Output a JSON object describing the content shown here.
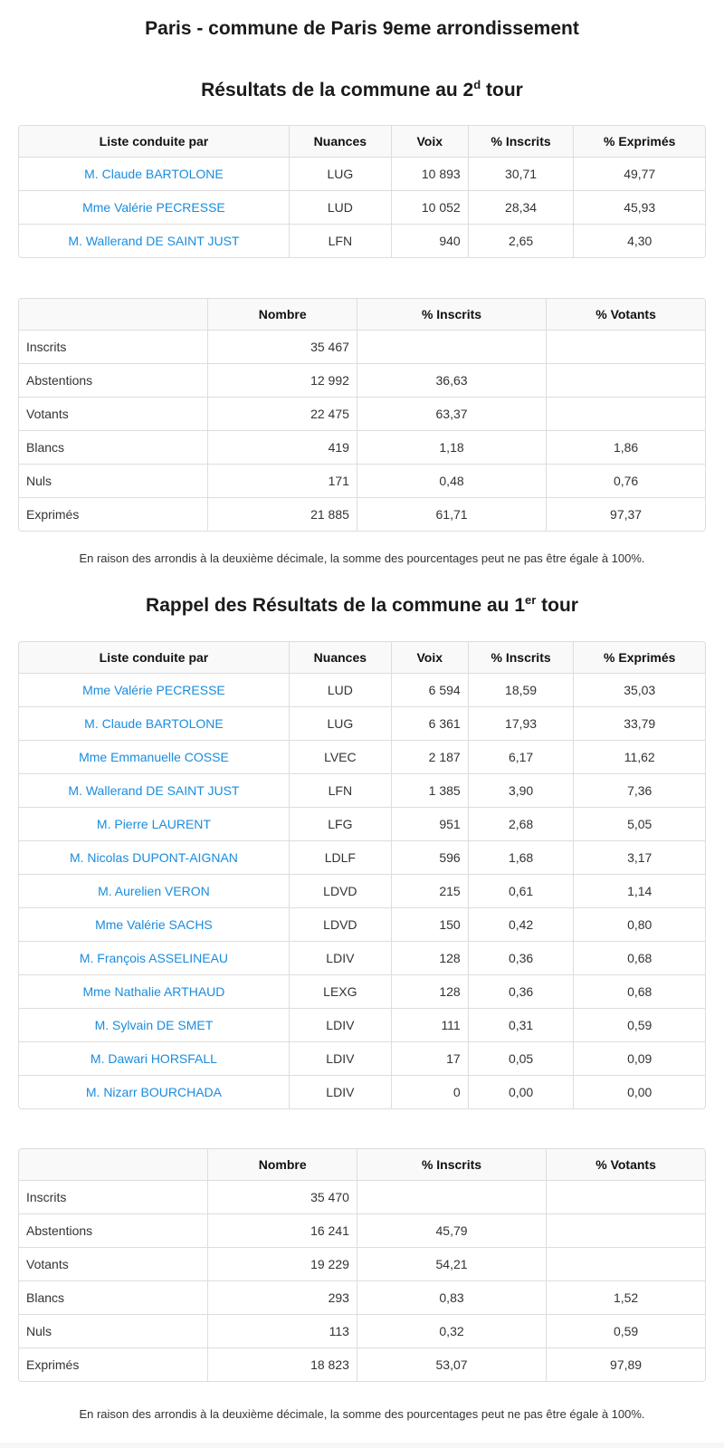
{
  "page": {
    "title": "Paris - commune de Paris 9eme arrondissement",
    "footnote": "En raison des arrondis à la deuxième décimale, la somme des pourcentages peut ne pas être égale à 100%."
  },
  "colors": {
    "link_blue": "#1a8cdd",
    "header_bg": "#f9f9f9",
    "border": "#dddddd"
  },
  "round2": {
    "heading": {
      "prefix": "Résultats de la commune au 2",
      "sup": "d",
      "suffix": " tour"
    },
    "results": {
      "headers": [
        "Liste conduite par",
        "Nuances",
        "Voix",
        "% Inscrits",
        "% Exprimés"
      ],
      "rows": [
        {
          "candidate": "M. Claude BARTOLONE",
          "nuance": "LUG",
          "voix": "10 893",
          "pct_inscrits": "30,71",
          "pct_exprimes": "49,77"
        },
        {
          "candidate": "Mme Valérie PECRESSE",
          "nuance": "LUD",
          "voix": "10 052",
          "pct_inscrits": "28,34",
          "pct_exprimes": "45,93"
        },
        {
          "candidate": "M. Wallerand DE SAINT JUST",
          "nuance": "LFN",
          "voix": "940",
          "pct_inscrits": "2,65",
          "pct_exprimes": "4,30"
        }
      ]
    },
    "stats": {
      "headers": [
        "",
        "Nombre",
        "% Inscrits",
        "% Votants"
      ],
      "rows": [
        {
          "label": "Inscrits",
          "nombre": "35 467",
          "pct_inscrits": "",
          "pct_votants": ""
        },
        {
          "label": "Abstentions",
          "nombre": "12 992",
          "pct_inscrits": "36,63",
          "pct_votants": ""
        },
        {
          "label": "Votants",
          "nombre": "22 475",
          "pct_inscrits": "63,37",
          "pct_votants": ""
        },
        {
          "label": "Blancs",
          "nombre": "419",
          "pct_inscrits": "1,18",
          "pct_votants": "1,86"
        },
        {
          "label": "Nuls",
          "nombre": "171",
          "pct_inscrits": "0,48",
          "pct_votants": "0,76"
        },
        {
          "label": "Exprimés",
          "nombre": "21 885",
          "pct_inscrits": "61,71",
          "pct_votants": "97,37"
        }
      ]
    }
  },
  "round1": {
    "heading": {
      "prefix": "Rappel des Résultats de la commune au 1",
      "sup": "er",
      "suffix": " tour"
    },
    "results": {
      "headers": [
        "Liste conduite par",
        "Nuances",
        "Voix",
        "% Inscrits",
        "% Exprimés"
      ],
      "rows": [
        {
          "candidate": "Mme Valérie PECRESSE",
          "nuance": "LUD",
          "voix": "6 594",
          "pct_inscrits": "18,59",
          "pct_exprimes": "35,03"
        },
        {
          "candidate": "M. Claude BARTOLONE",
          "nuance": "LUG",
          "voix": "6 361",
          "pct_inscrits": "17,93",
          "pct_exprimes": "33,79"
        },
        {
          "candidate": "Mme Emmanuelle COSSE",
          "nuance": "LVEC",
          "voix": "2 187",
          "pct_inscrits": "6,17",
          "pct_exprimes": "11,62"
        },
        {
          "candidate": "M. Wallerand DE SAINT JUST",
          "nuance": "LFN",
          "voix": "1 385",
          "pct_inscrits": "3,90",
          "pct_exprimes": "7,36"
        },
        {
          "candidate": "M. Pierre LAURENT",
          "nuance": "LFG",
          "voix": "951",
          "pct_inscrits": "2,68",
          "pct_exprimes": "5,05"
        },
        {
          "candidate": "M. Nicolas DUPONT-AIGNAN",
          "nuance": "LDLF",
          "voix": "596",
          "pct_inscrits": "1,68",
          "pct_exprimes": "3,17"
        },
        {
          "candidate": "M. Aurelien VERON",
          "nuance": "LDVD",
          "voix": "215",
          "pct_inscrits": "0,61",
          "pct_exprimes": "1,14"
        },
        {
          "candidate": "Mme Valérie SACHS",
          "nuance": "LDVD",
          "voix": "150",
          "pct_inscrits": "0,42",
          "pct_exprimes": "0,80"
        },
        {
          "candidate": "M. François ASSELINEAU",
          "nuance": "LDIV",
          "voix": "128",
          "pct_inscrits": "0,36",
          "pct_exprimes": "0,68"
        },
        {
          "candidate": "Mme Nathalie ARTHAUD",
          "nuance": "LEXG",
          "voix": "128",
          "pct_inscrits": "0,36",
          "pct_exprimes": "0,68"
        },
        {
          "candidate": "M. Sylvain DE SMET",
          "nuance": "LDIV",
          "voix": "111",
          "pct_inscrits": "0,31",
          "pct_exprimes": "0,59"
        },
        {
          "candidate": "M. Dawari HORSFALL",
          "nuance": "LDIV",
          "voix": "17",
          "pct_inscrits": "0,05",
          "pct_exprimes": "0,09"
        },
        {
          "candidate": "M. Nizarr BOURCHADA",
          "nuance": "LDIV",
          "voix": "0",
          "pct_inscrits": "0,00",
          "pct_exprimes": "0,00"
        }
      ]
    },
    "stats": {
      "headers": [
        "",
        "Nombre",
        "% Inscrits",
        "% Votants"
      ],
      "rows": [
        {
          "label": "Inscrits",
          "nombre": "35 470",
          "pct_inscrits": "",
          "pct_votants": ""
        },
        {
          "label": "Abstentions",
          "nombre": "16 241",
          "pct_inscrits": "45,79",
          "pct_votants": ""
        },
        {
          "label": "Votants",
          "nombre": "19 229",
          "pct_inscrits": "54,21",
          "pct_votants": ""
        },
        {
          "label": "Blancs",
          "nombre": "293",
          "pct_inscrits": "0,83",
          "pct_votants": "1,52"
        },
        {
          "label": "Nuls",
          "nombre": "113",
          "pct_inscrits": "0,32",
          "pct_votants": "0,59"
        },
        {
          "label": "Exprimés",
          "nombre": "18 823",
          "pct_inscrits": "53,07",
          "pct_votants": "97,89"
        }
      ]
    }
  }
}
